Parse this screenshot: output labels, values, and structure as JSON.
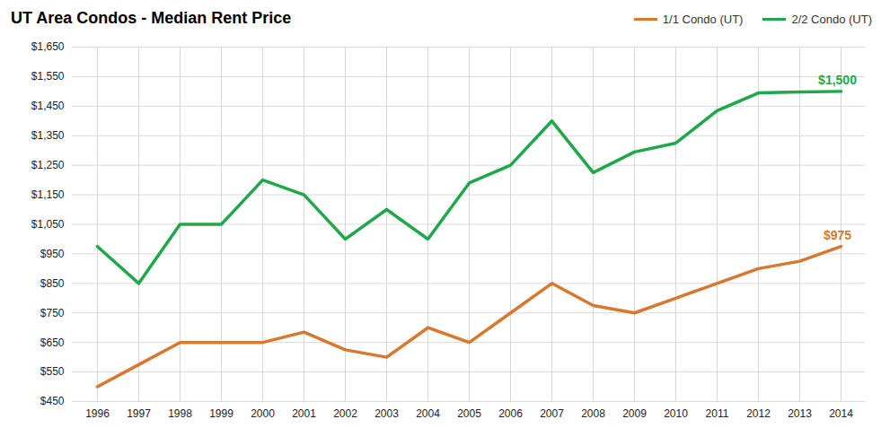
{
  "chart_data": {
    "type": "line",
    "title": "UT Area Condos - Median Rent Price",
    "categories": [
      "1996",
      "1997",
      "1998",
      "1999",
      "2000",
      "2001",
      "2002",
      "2003",
      "2004",
      "2005",
      "2006",
      "2007",
      "2008",
      "2009",
      "2010",
      "2011",
      "2012",
      "2013",
      "2014"
    ],
    "series": [
      {
        "name": "1/1 Condo (UT)",
        "color": "#d9772e",
        "values": [
          500,
          575,
          650,
          650,
          650,
          685,
          625,
          600,
          700,
          650,
          750,
          850,
          775,
          750,
          800,
          850,
          900,
          925,
          975
        ]
      },
      {
        "name": "2/2 Condo (UT)",
        "color": "#1ea84a",
        "values": [
          975,
          850,
          1050,
          1050,
          1200,
          1150,
          1000,
          1100,
          1000,
          1190,
          1250,
          1400,
          1225,
          1295,
          1325,
          1435,
          1495,
          1498,
          1500
        ]
      }
    ],
    "annotations": [
      {
        "text": "$1,500",
        "x": "2014",
        "y": 1500,
        "color": "#1ea84a"
      },
      {
        "text": "$975",
        "x": "2014",
        "y": 975,
        "color": "#d9772e"
      }
    ],
    "ylim": [
      450,
      1650
    ],
    "yticks": [
      {
        "value": 450,
        "label": "$450"
      },
      {
        "value": 550,
        "label": "$550"
      },
      {
        "value": 650,
        "label": "$650"
      },
      {
        "value": 750,
        "label": "$750"
      },
      {
        "value": 850,
        "label": "$850"
      },
      {
        "value": 950,
        "label": "$950"
      },
      {
        "value": 1050,
        "label": "$1,050"
      },
      {
        "value": 1150,
        "label": "$1,150"
      },
      {
        "value": 1250,
        "label": "$1,250"
      },
      {
        "value": 1350,
        "label": "$1,350"
      },
      {
        "value": 1450,
        "label": "$1,450"
      },
      {
        "value": 1550,
        "label": "$1,550"
      },
      {
        "value": 1650,
        "label": "$1,650"
      }
    ],
    "grid": true,
    "legend": "top-right"
  }
}
